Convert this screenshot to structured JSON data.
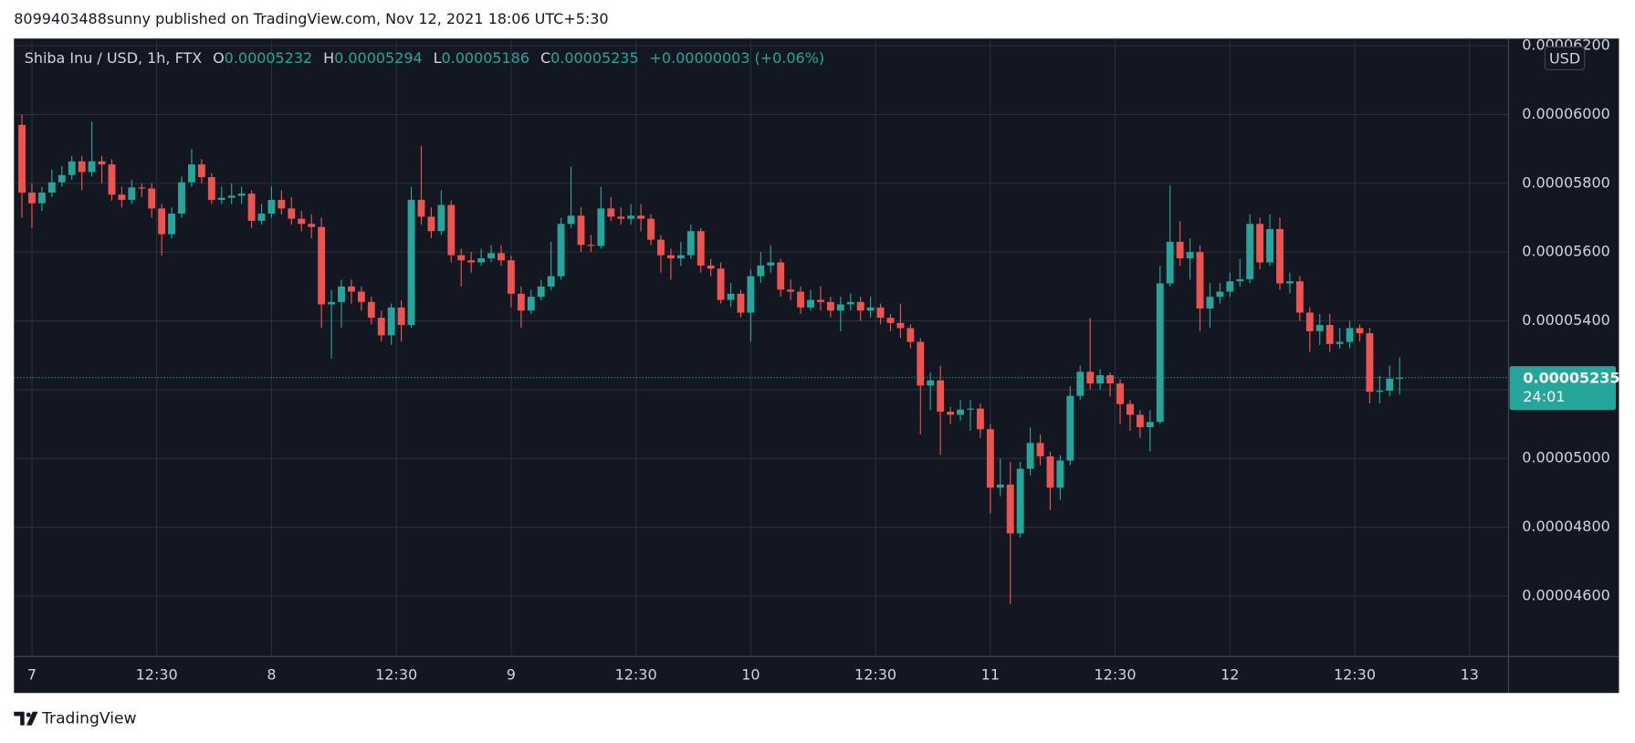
{
  "header": {
    "publisher": "8099403488sunny published on TradingView.com, Nov 12, 2021 18:06 UTC+5:30"
  },
  "chart_data": {
    "type": "candlestick",
    "title": "Shiba Inu / USD, 1h, FTX",
    "ohlc_legend": {
      "o_label": "O",
      "o_value": "0.00005232",
      "h_label": "H",
      "h_value": "0.00005294",
      "l_label": "L",
      "l_value": "0.00005186",
      "c_label": "C",
      "c_value": "0.00005235",
      "change": "+0.00000003 (+0.06%)"
    },
    "currency": "USD",
    "last_price_label": "0.00005235",
    "countdown": "24:01",
    "up_color": "#26a69a",
    "down_color": "#ef5350",
    "grid": true,
    "xlim": [
      -1.8,
      147.9
    ],
    "xticks": [
      {
        "value": 0,
        "label": "7"
      },
      {
        "value": 12.5,
        "label": "12:30"
      },
      {
        "value": 24,
        "label": "8"
      },
      {
        "value": 36.5,
        "label": "12:30"
      },
      {
        "value": 48,
        "label": "9"
      },
      {
        "value": 60.5,
        "label": "12:30"
      },
      {
        "value": 72,
        "label": "10"
      },
      {
        "value": 84.5,
        "label": "12:30"
      },
      {
        "value": 96,
        "label": "11"
      },
      {
        "value": 108.5,
        "label": "12:30"
      },
      {
        "value": 120,
        "label": "12"
      },
      {
        "value": 132.5,
        "label": "12:30"
      },
      {
        "value": 144,
        "label": "13"
      }
    ],
    "ylim": [
      4.424e-05,
      6.221e-05
    ],
    "yticks": [
      {
        "value": 4.6e-05,
        "label": "0.00004600"
      },
      {
        "value": 4.8e-05,
        "label": "0.00004800"
      },
      {
        "value": 5e-05,
        "label": "0.00005000"
      },
      {
        "value": 5.2e-05,
        "label": "0.00005200"
      },
      {
        "value": 5.4e-05,
        "label": "0.00005400"
      },
      {
        "value": 5.6e-05,
        "label": "0.00005600"
      },
      {
        "value": 5.8e-05,
        "label": "0.00005800"
      },
      {
        "value": 6e-05,
        "label": "0.00006000"
      },
      {
        "value": 6.2e-05,
        "label": "0.00006200"
      }
    ],
    "x": [
      -1,
      0,
      1,
      2,
      3,
      4,
      5,
      6,
      7,
      8,
      9,
      10,
      11,
      12,
      13,
      14,
      15,
      16,
      17,
      18,
      19,
      20,
      21,
      22,
      23,
      24,
      25,
      26,
      27,
      28,
      29,
      30,
      31,
      32,
      33,
      34,
      35,
      36,
      37,
      38,
      39,
      40,
      41,
      42,
      43,
      44,
      45,
      46,
      47,
      48,
      49,
      50,
      51,
      52,
      53,
      54,
      55,
      56,
      57,
      58,
      59,
      60,
      61,
      62,
      63,
      64,
      65,
      66,
      67,
      68,
      69,
      70,
      71,
      72,
      73,
      74,
      75,
      76,
      77,
      78,
      79,
      80,
      81,
      82,
      83,
      84,
      85,
      86,
      87,
      88,
      89,
      90,
      91,
      92,
      93,
      94,
      95,
      96,
      97,
      98,
      99,
      100,
      101,
      102,
      103,
      104,
      105,
      106,
      107,
      108,
      109,
      110,
      111,
      112,
      113,
      114,
      115,
      116,
      117,
      118,
      119,
      120,
      121,
      122,
      123,
      124,
      125,
      126,
      127,
      128,
      129,
      130,
      131,
      132,
      133,
      134,
      135,
      136,
      137
    ],
    "open": [
      5.97e-05,
      5.773e-05,
      5.742e-05,
      5.773e-05,
      5.803e-05,
      5.824e-05,
      5.864e-05,
      5.833e-05,
      5.864e-05,
      5.855e-05,
      5.767e-05,
      5.752e-05,
      5.788e-05,
      5.785e-05,
      5.727e-05,
      5.652e-05,
      5.712e-05,
      5.803e-05,
      5.855e-05,
      5.818e-05,
      5.752e-05,
      5.758e-05,
      5.764e-05,
      5.77e-05,
      5.691e-05,
      5.712e-05,
      5.752e-05,
      5.727e-05,
      5.697e-05,
      5.682e-05,
      5.673e-05,
      5.448e-05,
      5.455e-05,
      5.5e-05,
      5.485e-05,
      5.455e-05,
      5.409e-05,
      5.358e-05,
      5.439e-05,
      5.388e-05,
      5.752e-05,
      5.703e-05,
      5.661e-05,
      5.737e-05,
      5.591e-05,
      5.576e-05,
      5.57e-05,
      5.582e-05,
      5.597e-05,
      5.576e-05,
      5.479e-05,
      5.43e-05,
      5.47e-05,
      5.5e-05,
      5.53e-05,
      5.682e-05,
      5.706e-05,
      5.621e-05,
      5.618e-05,
      5.727e-05,
      5.703e-05,
      5.697e-05,
      5.706e-05,
      5.697e-05,
      5.636e-05,
      5.591e-05,
      5.582e-05,
      5.591e-05,
      5.661e-05,
      5.561e-05,
      5.552e-05,
      5.461e-05,
      5.479e-05,
      5.424e-05,
      5.53e-05,
      5.561e-05,
      5.57e-05,
      5.491e-05,
      5.485e-05,
      5.439e-05,
      5.461e-05,
      5.455e-05,
      5.43e-05,
      5.448e-05,
      5.455e-05,
      5.43e-05,
      5.439e-05,
      5.409e-05,
      5.394e-05,
      5.379e-05,
      5.339e-05,
      5.212e-05,
      5.227e-05,
      5.136e-05,
      5.127e-05,
      5.142e-05,
      5.145e-05,
      5.085e-05,
      4.915e-05,
      4.924e-05,
      4.782e-05,
      4.97e-05,
      5.045e-05,
      5.006e-05,
      4.915e-05,
      4.994e-05,
      5.182e-05,
      5.252e-05,
      5.218e-05,
      5.242e-05,
      5.218e-05,
      5.158e-05,
      5.127e-05,
      5.091e-05,
      5.106e-05,
      5.509e-05,
      5.63e-05,
      5.582e-05,
      5.6e-05,
      5.436e-05,
      5.47e-05,
      5.485e-05,
      5.515e-05,
      5.521e-05,
      5.682e-05,
      5.57e-05,
      5.667e-05,
      5.509e-05,
      5.515e-05,
      5.424e-05,
      5.37e-05,
      5.388e-05,
      5.333e-05,
      5.339e-05,
      5.379e-05,
      5.364e-05,
      5.194e-05,
      5.197e-05,
      5.232e-05
    ],
    "high": [
      6e-05,
      5.8e-05,
      5.79e-05,
      5.84e-05,
      5.85e-05,
      5.88e-05,
      5.88e-05,
      5.979e-05,
      5.88e-05,
      5.87e-05,
      5.79e-05,
      5.81e-05,
      5.8e-05,
      5.8e-05,
      5.74e-05,
      5.73e-05,
      5.82e-05,
      5.9e-05,
      5.87e-05,
      5.83e-05,
      5.79e-05,
      5.8e-05,
      5.79e-05,
      5.78e-05,
      5.74e-05,
      5.79e-05,
      5.78e-05,
      5.76e-05,
      5.72e-05,
      5.71e-05,
      5.7e-05,
      5.49e-05,
      5.52e-05,
      5.52e-05,
      5.5e-05,
      5.47e-05,
      5.43e-05,
      5.45e-05,
      5.46e-05,
      5.79e-05,
      5.909e-05,
      5.73e-05,
      5.78e-05,
      5.75e-05,
      5.61e-05,
      5.6e-05,
      5.61e-05,
      5.62e-05,
      5.62e-05,
      5.59e-05,
      5.5e-05,
      5.49e-05,
      5.52e-05,
      5.63e-05,
      5.7e-05,
      5.848e-05,
      5.73e-05,
      5.65e-05,
      5.79e-05,
      5.76e-05,
      5.73e-05,
      5.74e-05,
      5.74e-05,
      5.71e-05,
      5.65e-05,
      5.61e-05,
      5.63e-05,
      5.68e-05,
      5.67e-05,
      5.58e-05,
      5.57e-05,
      5.51e-05,
      5.49e-05,
      5.55e-05,
      5.6e-05,
      5.62e-05,
      5.58e-05,
      5.52e-05,
      5.5e-05,
      5.49e-05,
      5.5e-05,
      5.47e-05,
      5.47e-05,
      5.48e-05,
      5.47e-05,
      5.47e-05,
      5.45e-05,
      5.42e-05,
      5.45e-05,
      5.39e-05,
      5.35e-05,
      5.25e-05,
      5.27e-05,
      5.15e-05,
      5.17e-05,
      5.17e-05,
      5.16e-05,
      5.1e-05,
      5e-05,
      4.99e-05,
      4.99e-05,
      5.09e-05,
      5.07e-05,
      5.02e-05,
      5.01e-05,
      5.21e-05,
      5.27e-05,
      5.409e-05,
      5.26e-05,
      5.25e-05,
      5.23e-05,
      5.17e-05,
      5.14e-05,
      5.14e-05,
      5.56e-05,
      5.794e-05,
      5.69e-05,
      5.64e-05,
      5.62e-05,
      5.51e-05,
      5.51e-05,
      5.54e-05,
      5.58e-05,
      5.71e-05,
      5.7e-05,
      5.71e-05,
      5.7e-05,
      5.54e-05,
      5.53e-05,
      5.44e-05,
      5.42e-05,
      5.42e-05,
      5.38e-05,
      5.4e-05,
      5.39e-05,
      5.38e-05,
      5.24e-05,
      5.27e-05,
      5.294e-05
    ],
    "low": [
      5.7e-05,
      5.67e-05,
      5.72e-05,
      5.76e-05,
      5.79e-05,
      5.81e-05,
      5.78e-05,
      5.82e-05,
      5.8e-05,
      5.75e-05,
      5.73e-05,
      5.74e-05,
      5.76e-05,
      5.7e-05,
      5.59e-05,
      5.64e-05,
      5.7e-05,
      5.79e-05,
      5.8e-05,
      5.74e-05,
      5.74e-05,
      5.74e-05,
      5.74e-05,
      5.67e-05,
      5.68e-05,
      5.7e-05,
      5.71e-05,
      5.68e-05,
      5.66e-05,
      5.64e-05,
      5.38e-05,
      5.29e-05,
      5.38e-05,
      5.45e-05,
      5.43e-05,
      5.39e-05,
      5.34e-05,
      5.33e-05,
      5.34e-05,
      5.38e-05,
      5.68e-05,
      5.64e-05,
      5.65e-05,
      5.57e-05,
      5.5e-05,
      5.54e-05,
      5.56e-05,
      5.57e-05,
      5.56e-05,
      5.44e-05,
      5.38e-05,
      5.42e-05,
      5.46e-05,
      5.49e-05,
      5.52e-05,
      5.67e-05,
      5.6e-05,
      5.6e-05,
      5.61e-05,
      5.69e-05,
      5.68e-05,
      5.68e-05,
      5.66e-05,
      5.62e-05,
      5.54e-05,
      5.52e-05,
      5.56e-05,
      5.58e-05,
      5.54e-05,
      5.53e-05,
      5.45e-05,
      5.44e-05,
      5.41e-05,
      5.34e-05,
      5.51e-05,
      5.54e-05,
      5.47e-05,
      5.46e-05,
      5.42e-05,
      5.43e-05,
      5.43e-05,
      5.41e-05,
      5.37e-05,
      5.43e-05,
      5.4e-05,
      5.41e-05,
      5.39e-05,
      5.37e-05,
      5.35e-05,
      5.32e-05,
      5.07e-05,
      5.14e-05,
      5.01e-05,
      5.1e-05,
      5.11e-05,
      5.08e-05,
      5.06e-05,
      4.84e-05,
      4.89e-05,
      4.576e-05,
      4.77e-05,
      4.95e-05,
      4.98e-05,
      4.85e-05,
      4.88e-05,
      4.98e-05,
      5.17e-05,
      5.2e-05,
      5.2e-05,
      5.18e-05,
      5.1e-05,
      5.08e-05,
      5.06e-05,
      5.02e-05,
      5.1e-05,
      5.5e-05,
      5.56e-05,
      5.52e-05,
      5.37e-05,
      5.38e-05,
      5.45e-05,
      5.47e-05,
      5.5e-05,
      5.51e-05,
      5.55e-05,
      5.56e-05,
      5.49e-05,
      5.48e-05,
      5.4e-05,
      5.31e-05,
      5.33e-05,
      5.31e-05,
      5.32e-05,
      5.32e-05,
      5.34e-05,
      5.16e-05,
      5.16e-05,
      5.18e-05,
      5.186e-05
    ],
    "close": [
      5.773e-05,
      5.742e-05,
      5.773e-05,
      5.803e-05,
      5.824e-05,
      5.864e-05,
      5.833e-05,
      5.864e-05,
      5.855e-05,
      5.767e-05,
      5.752e-05,
      5.788e-05,
      5.785e-05,
      5.727e-05,
      5.652e-05,
      5.712e-05,
      5.803e-05,
      5.855e-05,
      5.818e-05,
      5.752e-05,
      5.758e-05,
      5.764e-05,
      5.77e-05,
      5.691e-05,
      5.712e-05,
      5.752e-05,
      5.727e-05,
      5.697e-05,
      5.682e-05,
      5.673e-05,
      5.448e-05,
      5.455e-05,
      5.5e-05,
      5.485e-05,
      5.455e-05,
      5.409e-05,
      5.358e-05,
      5.439e-05,
      5.388e-05,
      5.752e-05,
      5.703e-05,
      5.661e-05,
      5.737e-05,
      5.591e-05,
      5.576e-05,
      5.57e-05,
      5.582e-05,
      5.597e-05,
      5.576e-05,
      5.479e-05,
      5.43e-05,
      5.47e-05,
      5.5e-05,
      5.53e-05,
      5.682e-05,
      5.706e-05,
      5.621e-05,
      5.618e-05,
      5.727e-05,
      5.703e-05,
      5.697e-05,
      5.706e-05,
      5.697e-05,
      5.636e-05,
      5.591e-05,
      5.582e-05,
      5.591e-05,
      5.661e-05,
      5.561e-05,
      5.552e-05,
      5.461e-05,
      5.479e-05,
      5.424e-05,
      5.53e-05,
      5.561e-05,
      5.57e-05,
      5.491e-05,
      5.485e-05,
      5.439e-05,
      5.461e-05,
      5.455e-05,
      5.43e-05,
      5.448e-05,
      5.455e-05,
      5.43e-05,
      5.439e-05,
      5.409e-05,
      5.394e-05,
      5.379e-05,
      5.339e-05,
      5.212e-05,
      5.227e-05,
      5.136e-05,
      5.127e-05,
      5.142e-05,
      5.145e-05,
      5.085e-05,
      4.915e-05,
      4.924e-05,
      4.782e-05,
      4.97e-05,
      5.045e-05,
      5.006e-05,
      4.915e-05,
      4.994e-05,
      5.182e-05,
      5.252e-05,
      5.218e-05,
      5.242e-05,
      5.218e-05,
      5.158e-05,
      5.127e-05,
      5.091e-05,
      5.106e-05,
      5.509e-05,
      5.63e-05,
      5.582e-05,
      5.6e-05,
      5.436e-05,
      5.47e-05,
      5.485e-05,
      5.515e-05,
      5.521e-05,
      5.682e-05,
      5.57e-05,
      5.667e-05,
      5.509e-05,
      5.515e-05,
      5.424e-05,
      5.37e-05,
      5.388e-05,
      5.333e-05,
      5.339e-05,
      5.379e-05,
      5.364e-05,
      5.194e-05,
      5.197e-05,
      5.232e-05,
      5.235e-05
    ]
  },
  "footer": {
    "brand": "TradingView"
  }
}
